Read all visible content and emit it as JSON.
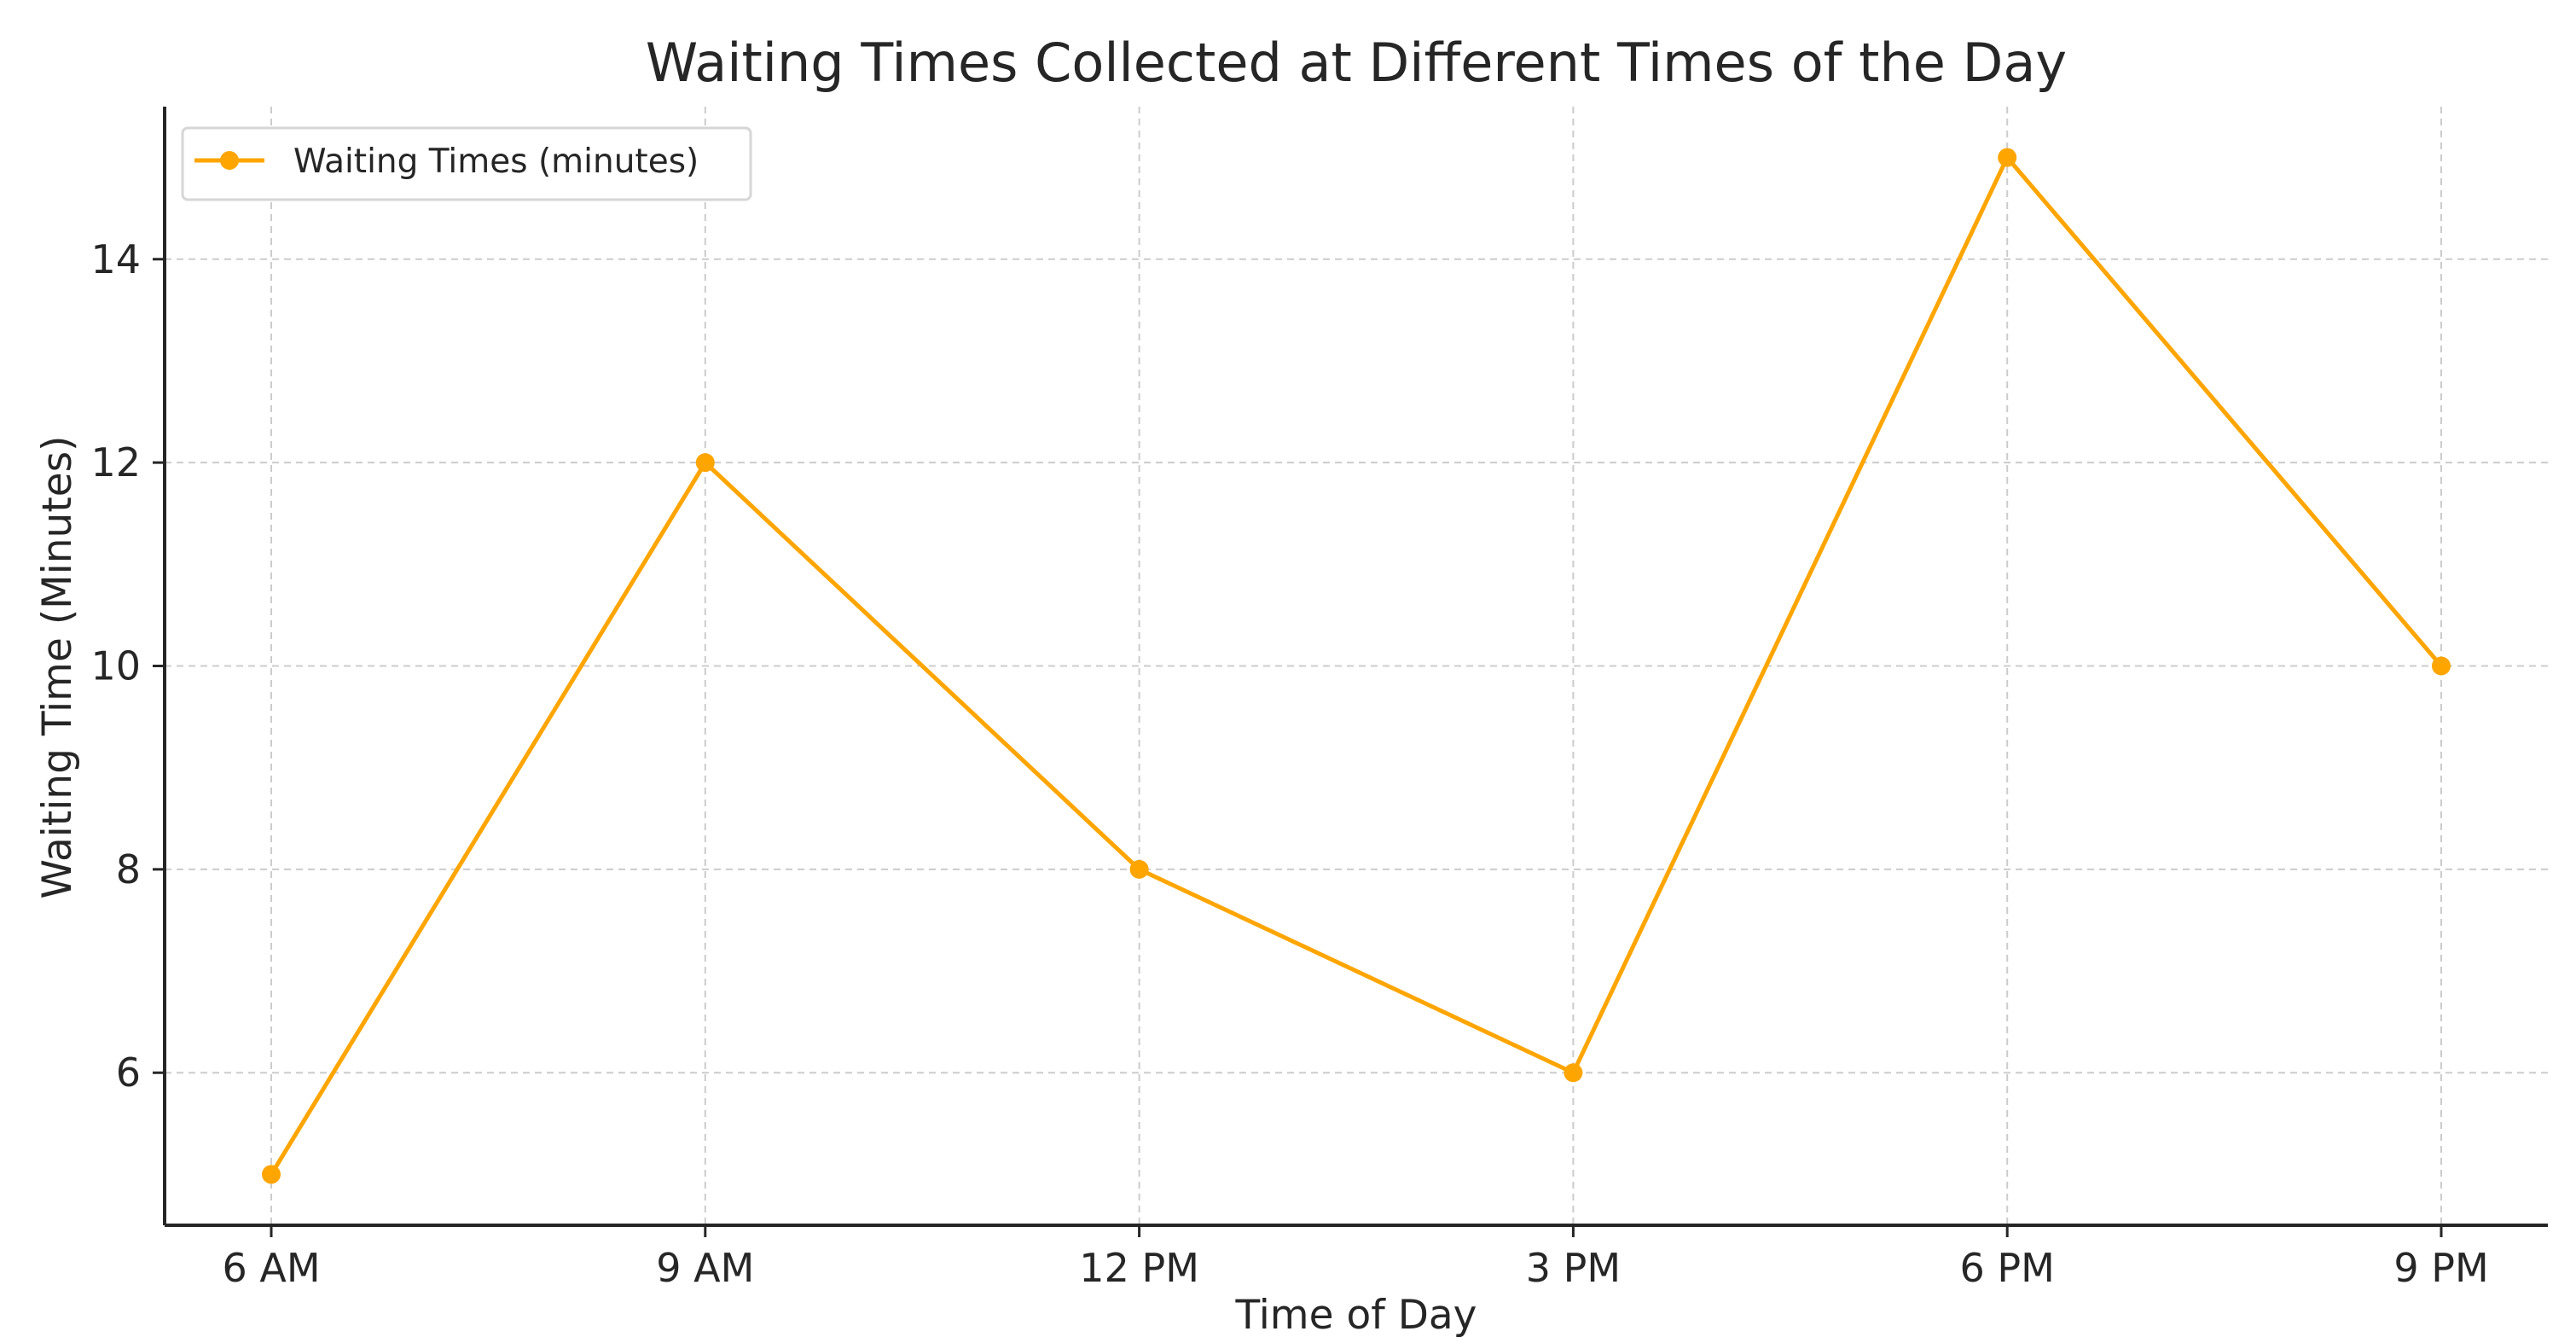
{
  "chart_data": {
    "type": "line",
    "title": "Waiting Times Collected at Different Times of the Day",
    "xlabel": "Time of Day",
    "ylabel": "Waiting Time (Minutes)",
    "categories": [
      "6 AM",
      "9 AM",
      "12 PM",
      "3 PM",
      "6 PM",
      "9 PM"
    ],
    "series": [
      {
        "name": "Waiting Times (minutes)",
        "values": [
          5,
          12,
          8,
          6,
          15,
          10
        ],
        "color": "#ffa500",
        "marker": "circle"
      }
    ],
    "yticks": [
      6,
      8,
      10,
      12,
      14
    ],
    "ylim": [
      4.5,
      15.5
    ],
    "grid": true,
    "legend": "top-left"
  }
}
